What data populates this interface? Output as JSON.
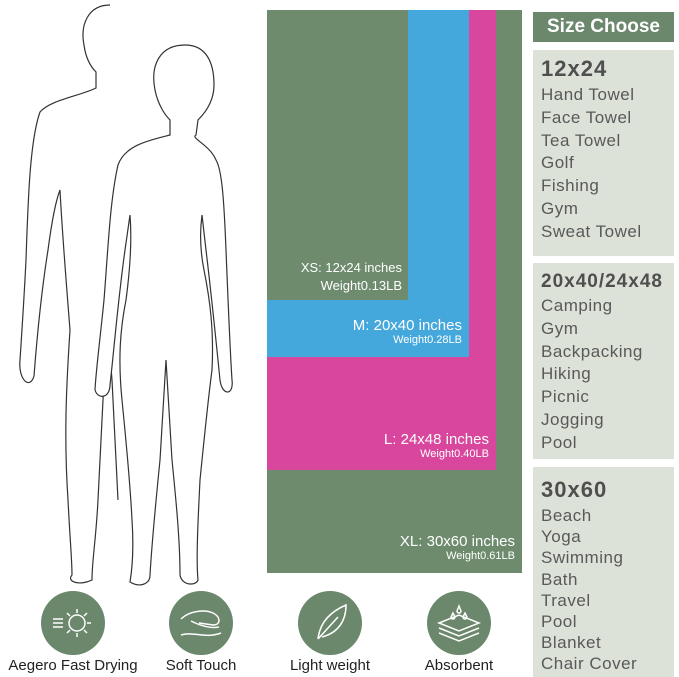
{
  "sizes": [
    {
      "label": "XS: 12x24 inches",
      "weight": "Weight0.13LB",
      "color": "#6e8b6e"
    },
    {
      "label": "M: 20x40 inches",
      "weight": "Weight0.28LB",
      "color": "#45a8dc"
    },
    {
      "label": "L: 24x48 inches",
      "weight": "Weight0.40LB",
      "color": "#d9469d"
    },
    {
      "label": "XL: 30x60 inches",
      "weight": "Weight0.61LB",
      "color": "#6e8b6e"
    }
  ],
  "size_choose": {
    "title": "Size Choose",
    "groups": [
      {
        "heading": "12x24",
        "items": [
          "Hand Towel",
          "Face Towel",
          "Tea Towel",
          "Golf",
          "Fishing",
          "Gym",
          "Sweat Towel"
        ]
      },
      {
        "heading": "20x40/24x48",
        "items": [
          "Camping",
          "Gym",
          "Backpacking",
          "Hiking",
          "Picnic",
          "Jogging",
          "Pool"
        ]
      },
      {
        "heading": "30x60",
        "items": [
          "Beach",
          "Yoga",
          "Swimming",
          "Bath",
          "Travel",
          "Pool",
          "Blanket",
          "Chair Cover"
        ]
      }
    ]
  },
  "features": [
    {
      "label": "Aegero Fast Drying",
      "icon": "sun-wind-icon"
    },
    {
      "label": "Soft Touch",
      "icon": "hand-icon"
    },
    {
      "label": "Light weight",
      "icon": "feather-icon"
    },
    {
      "label": "Absorbent",
      "icon": "layers-drops-icon"
    }
  ]
}
